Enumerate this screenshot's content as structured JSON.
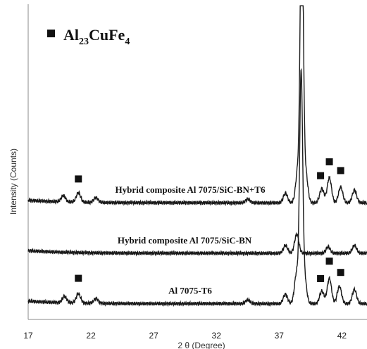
{
  "chart_data": {
    "type": "line",
    "xlabel": "2 θ (Degree)",
    "ylabel": "Intensity (Counts)",
    "xlim": [
      17,
      44
    ],
    "x_ticks": [
      17,
      22,
      27,
      32,
      37,
      42
    ],
    "grid": false,
    "y_tick_labels": false,
    "legend": {
      "marker": "square",
      "base": "Al",
      "sub1": "23",
      "middle": "CuFe",
      "sub2": "4"
    },
    "series": [
      {
        "name": "Hybrid composite Al 7075/SiC-BN+T6",
        "baseline": 0.37,
        "peaks": [
          [
            19.8,
            0.02
          ],
          [
            21.0,
            0.03
          ],
          [
            22.4,
            0.015
          ],
          [
            34.5,
            0.012
          ],
          [
            37.5,
            0.03
          ],
          [
            38.5,
            0.11
          ],
          [
            38.8,
            0.95
          ],
          [
            39.1,
            0.1
          ],
          [
            40.4,
            0.045
          ],
          [
            41.0,
            0.08
          ],
          [
            41.9,
            0.05
          ],
          [
            43.0,
            0.04
          ]
        ],
        "markers_x": [
          21.0,
          40.3,
          41.0,
          41.9
        ]
      },
      {
        "name": "Hybrid composite Al 7075/SiC-BN",
        "baseline": 0.21,
        "peaks": [
          [
            37.5,
            0.025
          ],
          [
            38.4,
            0.06
          ],
          [
            40.9,
            0.02
          ],
          [
            43.0,
            0.025
          ]
        ],
        "markers_x": []
      },
      {
        "name": "Al 7075-T6",
        "baseline": 0.05,
        "peaks": [
          [
            19.9,
            0.02
          ],
          [
            21.0,
            0.03
          ],
          [
            22.4,
            0.015
          ],
          [
            34.5,
            0.012
          ],
          [
            37.5,
            0.03
          ],
          [
            38.4,
            0.1
          ],
          [
            38.75,
            0.7
          ],
          [
            39.0,
            0.09
          ],
          [
            40.4,
            0.04
          ],
          [
            41.0,
            0.08
          ],
          [
            41.8,
            0.055
          ],
          [
            43.0,
            0.045
          ]
        ],
        "markers_x": [
          21.0,
          40.3,
          41.0,
          41.9
        ]
      }
    ]
  }
}
